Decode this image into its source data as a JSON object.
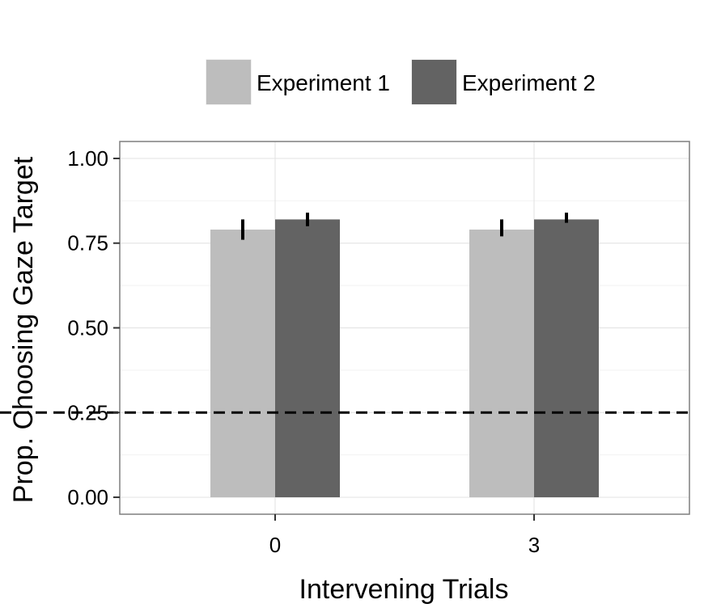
{
  "chart_data": {
    "type": "bar",
    "title": "",
    "xlabel": "Intervening Trials",
    "ylabel": "Prop. Choosing Gaze Target",
    "categories": [
      "0",
      "3"
    ],
    "series": [
      {
        "name": "Experiment 1",
        "color": "#bdbdbd",
        "values": [
          0.79,
          0.79
        ],
        "error_low": [
          0.76,
          0.77
        ],
        "error_high": [
          0.82,
          0.82
        ]
      },
      {
        "name": "Experiment 2",
        "color": "#636363",
        "values": [
          0.82,
          0.82
        ],
        "error_low": [
          0.8,
          0.81
        ],
        "error_high": [
          0.84,
          0.84
        ]
      }
    ],
    "ylim": [
      -0.05,
      1.05
    ],
    "yticks": [
      0.0,
      0.25,
      0.5,
      0.75,
      1.0
    ],
    "ytick_labels": [
      "0.00",
      "0.25",
      "0.50",
      "0.75",
      "1.00"
    ],
    "reference_line": {
      "y": 0.25,
      "style": "dashed",
      "color": "#000000"
    },
    "grid": true,
    "legend_position": "top"
  }
}
